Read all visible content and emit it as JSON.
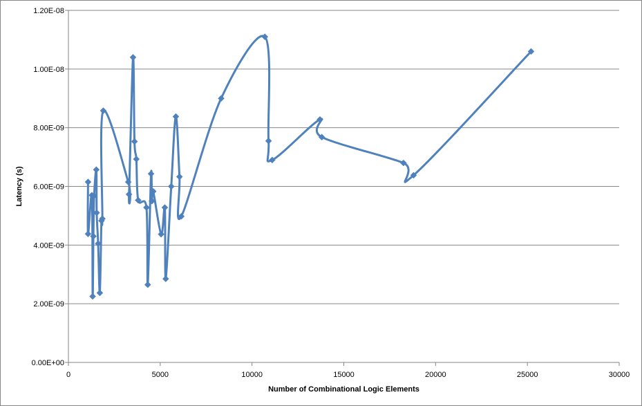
{
  "chart_data": {
    "type": "scatter",
    "title": "",
    "xlabel": "Number of Combinational  Logic Elements",
    "ylabel": "Latency (s)",
    "xlim": [
      0,
      30000
    ],
    "ylim": [
      0,
      1.2e-08
    ],
    "xticks": [
      0,
      5000,
      10000,
      15000,
      20000,
      25000,
      30000
    ],
    "xtick_labels": [
      "0",
      "5000",
      "10000",
      "15000",
      "20000",
      "25000",
      "30000"
    ],
    "yticks": [
      0,
      2e-09,
      4e-09,
      6e-09,
      8e-09,
      1e-08,
      1.2e-08
    ],
    "ytick_labels": [
      "0.00E+00",
      "2.00E-09",
      "4.00E-09",
      "6.00E-09",
      "8.00E-09",
      "1.00E-08",
      "1.20E-08"
    ],
    "grid": "horizontal",
    "legend": "none",
    "line_style": "smoothed line with diamond markers",
    "colors": {
      "series": "#4f81bd",
      "grid": "#868686",
      "axis": "#868686"
    },
    "series": [
      {
        "x": [
          1070,
          1070,
          1280,
          1320,
          1360,
          1400,
          1520,
          1540,
          1620,
          1710,
          1800,
          1850,
          1900,
          3260,
          3300,
          3520,
          3600,
          3700,
          3800,
          4250,
          4320,
          4500,
          4550,
          4620,
          5050,
          5250,
          5300,
          5600,
          5850,
          6050,
          6150,
          8320,
          10700,
          10900,
          11100,
          13700,
          13800,
          18250,
          18800,
          25200
        ],
        "y": [
          6.15e-09,
          4.38e-09,
          5.7e-09,
          2.25e-09,
          4.3e-09,
          5.68e-09,
          6.57e-09,
          5.1e-09,
          4.05e-09,
          2.37e-09,
          4.83e-09,
          4.9e-09,
          8.58e-09,
          6.15e-09,
          5.73e-09,
          1.04e-08,
          7.53e-09,
          6.93e-09,
          5.53e-09,
          5.28e-09,
          2.65e-09,
          6.43e-09,
          5.5e-09,
          5.83e-09,
          4.37e-09,
          5.28e-09,
          2.85e-09,
          6e-09,
          8.38e-09,
          6.33e-09,
          4.98e-09,
          9e-09,
          1.11e-08,
          7.55e-09,
          6.9e-09,
          8.28e-09,
          7.68e-09,
          6.8e-09,
          6.38e-09,
          1.06e-08
        ]
      }
    ]
  }
}
